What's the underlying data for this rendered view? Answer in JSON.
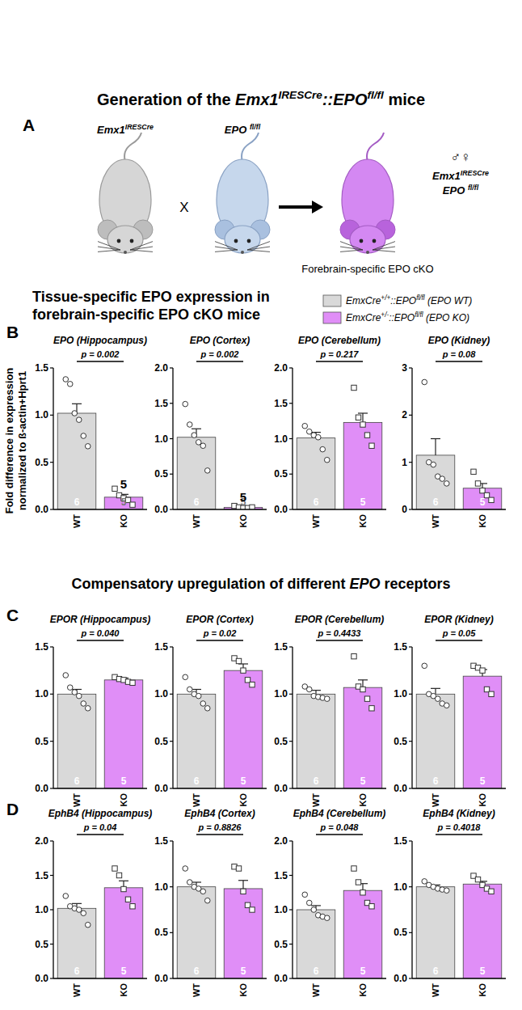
{
  "figure": {
    "title": [
      {
        "text": "Generation of the "
      },
      {
        "text": "Emx1",
        "italic": true
      },
      {
        "text": "IRESCre",
        "italic": true,
        "sup": true
      },
      {
        "text": "::",
        "italic": true
      },
      {
        "text": "EPO",
        "italic": true
      },
      {
        "text": "fl/fl",
        "italic": true,
        "sup": true
      },
      {
        "text": " mice"
      }
    ],
    "panel_letters": [
      "A",
      "B",
      "C",
      "D"
    ],
    "breeding": {
      "parent1": [
        {
          "text": "Emx1",
          "italic": true
        },
        {
          "text": "IRESCre",
          "italic": true,
          "sup": true
        }
      ],
      "cross": "X",
      "parent2": [
        {
          "text": "EPO ",
          "italic": true
        },
        {
          "text": "fl/fl",
          "italic": true,
          "sup": true
        }
      ],
      "sexes": "♂♀",
      "offspring": [
        [
          {
            "text": "Emx1",
            "italic": true
          },
          {
            "text": "IRESCre",
            "italic": true,
            "sup": true
          }
        ],
        [
          {
            "text": "EPO ",
            "italic": true
          },
          {
            "text": "fl/fl",
            "italic": true,
            "sup": true
          }
        ]
      ],
      "offspring_label": "Forebrain-specific EPO cKO"
    },
    "heading_B": [
      "Tissue-specific EPO expression in",
      "forebrain-specific EPO cKO mice"
    ],
    "heading_C": [
      {
        "text": "Compensatory upregulation of different "
      },
      {
        "text": "EPO",
        "italic": true
      },
      {
        "text": " receptors"
      }
    ],
    "legend": [
      {
        "label": [
          {
            "text": "EmxCre"
          },
          {
            "text": "+/+",
            "sup": true
          },
          {
            "text": "::EPO"
          },
          {
            "text": "fl/fl",
            "sup": true
          },
          {
            "text": " (EPO WT)"
          }
        ],
        "color": "#d9d9d9"
      },
      {
        "label": [
          {
            "text": "EmxCre"
          },
          {
            "text": "+/-",
            "sup": true
          },
          {
            "text": "::EPO"
          },
          {
            "text": "fl/fl",
            "sup": true
          },
          {
            "text": " (EPO KO)"
          }
        ],
        "color": "#e08ef7"
      }
    ],
    "y_label": "Fold difference in expression normalized to ß-actin+Hprt1"
  },
  "chart_data": [
    {
      "type": "bar",
      "title": "EPO (Hippocampus)",
      "categories": [
        "WT",
        "KO"
      ],
      "values": [
        1.02,
        0.13
      ],
      "errors": [
        0.1,
        0.03
      ],
      "points": [
        [
          1.38,
          1.33,
          1.02,
          0.95,
          0.78,
          0.67
        ],
        [
          0.22,
          0.15,
          0.12,
          0.1,
          0.05
        ]
      ],
      "n": [
        6,
        5
      ],
      "colors": [
        "#d9d9d9",
        "#e08ef7"
      ],
      "ylim": [
        0,
        1.5
      ],
      "yticks": [
        {
          "value": 0,
          "label": "0.0"
        },
        {
          "value": 0.5,
          "label": "0.5"
        },
        {
          "value": 1,
          "label": "1.0"
        },
        {
          "value": 1.5,
          "label": "1.5"
        }
      ],
      "p_label": "p = 0.002",
      "top_labels": [
        null,
        "5"
      ]
    },
    {
      "type": "bar",
      "title": "EPO (Cortex)",
      "categories": [
        "WT",
        "KO"
      ],
      "values": [
        1.02,
        0.03
      ],
      "errors": [
        0.12,
        0.01
      ],
      "points": [
        [
          1.49,
          1.2,
          1.05,
          0.95,
          0.9,
          0.55
        ],
        [
          0.05,
          0.03,
          0.02,
          0.02,
          0.03
        ]
      ],
      "n": [
        6,
        5
      ],
      "colors": [
        "#d9d9d9",
        "#e08ef7"
      ],
      "ylim": [
        0,
        2
      ],
      "yticks": [
        {
          "value": 0,
          "label": "0.0"
        },
        {
          "value": 0.5,
          "label": "0.5"
        },
        {
          "value": 1,
          "label": "1.0"
        },
        {
          "value": 1.5,
          "label": "1.5"
        },
        {
          "value": 2,
          "label": "2.0"
        }
      ],
      "p_label": "p = 0.002",
      "top_labels": [
        null,
        "5"
      ]
    },
    {
      "type": "bar",
      "title": "EPO (Cerebellum)",
      "categories": [
        "WT",
        "KO"
      ],
      "values": [
        1.01,
        1.23
      ],
      "errors": [
        0.08,
        0.13
      ],
      "points": [
        [
          1.18,
          1.1,
          1.05,
          1.02,
          0.85,
          0.7
        ],
        [
          1.72,
          1.3,
          1.2,
          1.05,
          0.9
        ]
      ],
      "n": [
        6,
        5
      ],
      "colors": [
        "#d9d9d9",
        "#e08ef7"
      ],
      "ylim": [
        0,
        2
      ],
      "yticks": [
        {
          "value": 0,
          "label": "0.0"
        },
        {
          "value": 0.5,
          "label": "0.5"
        },
        {
          "value": 1,
          "label": "1.0"
        },
        {
          "value": 1.5,
          "label": "1.5"
        },
        {
          "value": 2,
          "label": "2.0"
        }
      ],
      "p_label": "p = 0.217"
    },
    {
      "type": "bar",
      "title": "EPO (Kidney)",
      "categories": [
        "WT",
        "KO"
      ],
      "values": [
        1.15,
        0.45
      ],
      "errors": [
        0.35,
        0.1
      ],
      "points": [
        [
          2.7,
          1.0,
          0.95,
          0.7,
          0.65,
          0.55
        ],
        [
          0.8,
          0.55,
          0.4,
          0.3,
          0.2
        ]
      ],
      "n": [
        6,
        5
      ],
      "colors": [
        "#d9d9d9",
        "#e08ef7"
      ],
      "ylim": [
        0,
        3
      ],
      "yticks": [
        0,
        1,
        2,
        3
      ],
      "p_label": "p = 0.08"
    },
    {
      "type": "bar",
      "title": "EPOR (Hippocampus)",
      "categories": [
        "WT",
        "KO"
      ],
      "values": [
        1.0,
        1.15
      ],
      "errors": [
        0.05,
        0.02
      ],
      "points": [
        [
          1.2,
          1.07,
          1.02,
          0.98,
          0.9,
          0.85
        ],
        [
          1.18,
          1.16,
          1.15,
          1.13,
          1.12
        ]
      ],
      "n": [
        6,
        5
      ],
      "colors": [
        "#d9d9d9",
        "#e08ef7"
      ],
      "ylim": [
        0,
        1.5
      ],
      "yticks": [
        {
          "value": 0,
          "label": "0.0"
        },
        {
          "value": 0.5,
          "label": "0.5"
        },
        {
          "value": 1,
          "label": "1.0"
        },
        {
          "value": 1.5,
          "label": "1.5"
        }
      ],
      "p_label": "p = 0.040"
    },
    {
      "type": "bar",
      "title": "EPOR (Cortex)",
      "categories": [
        "WT",
        "KO"
      ],
      "values": [
        1.0,
        1.25
      ],
      "errors": [
        0.05,
        0.07
      ],
      "points": [
        [
          1.18,
          1.05,
          1.0,
          0.98,
          0.9,
          0.85
        ],
        [
          1.38,
          1.35,
          1.25,
          1.15,
          1.1
        ]
      ],
      "n": [
        6,
        5
      ],
      "colors": [
        "#d9d9d9",
        "#e08ef7"
      ],
      "ylim": [
        0,
        1.5
      ],
      "yticks": [
        {
          "value": 0,
          "label": "0.0"
        },
        {
          "value": 0.5,
          "label": "0.5"
        },
        {
          "value": 1,
          "label": "1.0"
        },
        {
          "value": 1.5,
          "label": "1.5"
        }
      ],
      "p_label": "p = 0.02"
    },
    {
      "type": "bar",
      "title": "EPOR (Cerebellum)",
      "categories": [
        "WT",
        "KO"
      ],
      "values": [
        1.0,
        1.07
      ],
      "errors": [
        0.04,
        0.08
      ],
      "points": [
        [
          1.08,
          1.05,
          0.98,
          0.97,
          0.96,
          0.95
        ],
        [
          1.4,
          1.08,
          1.05,
          0.95,
          0.85
        ]
      ],
      "n": [
        6,
        5
      ],
      "colors": [
        "#d9d9d9",
        "#e08ef7"
      ],
      "ylim": [
        0,
        1.5
      ],
      "yticks": [
        {
          "value": 0,
          "label": "0.0"
        },
        {
          "value": 0.5,
          "label": "0.5"
        },
        {
          "value": 1,
          "label": "1.0"
        },
        {
          "value": 1.5,
          "label": "1.5"
        }
      ],
      "p_label": "p = 0.4433"
    },
    {
      "type": "bar",
      "title": "EPOR (Kidney)",
      "categories": [
        "WT",
        "KO"
      ],
      "values": [
        1.0,
        1.19
      ],
      "errors": [
        0.06,
        0.07
      ],
      "points": [
        [
          1.3,
          1.0,
          0.98,
          0.95,
          0.9,
          0.88
        ],
        [
          1.3,
          1.28,
          1.25,
          1.05,
          1.0
        ]
      ],
      "n": [
        6,
        5
      ],
      "colors": [
        "#d9d9d9",
        "#e08ef7"
      ],
      "ylim": [
        0,
        1.5
      ],
      "yticks": [
        {
          "value": 0,
          "label": "0.0"
        },
        {
          "value": 0.5,
          "label": "0.5"
        },
        {
          "value": 1,
          "label": "1.0"
        },
        {
          "value": 1.5,
          "label": "1.5"
        }
      ],
      "p_label": "p = 0.05"
    },
    {
      "type": "bar",
      "title": "EphB4 (Hippocampus)",
      "categories": [
        "WT",
        "KO"
      ],
      "values": [
        1.02,
        1.32
      ],
      "errors": [
        0.07,
        0.1
      ],
      "points": [
        [
          1.2,
          1.05,
          1.02,
          1.0,
          0.95,
          0.78
        ],
        [
          1.6,
          1.5,
          1.3,
          1.15,
          1.05
        ]
      ],
      "n": [
        6,
        5
      ],
      "colors": [
        "#d9d9d9",
        "#e08ef7"
      ],
      "ylim": [
        0,
        2
      ],
      "yticks": [
        {
          "value": 0,
          "label": "0.0"
        },
        {
          "value": 0.5,
          "label": "0.5"
        },
        {
          "value": 1,
          "label": "1.0"
        },
        {
          "value": 1.5,
          "label": "1.5"
        },
        {
          "value": 2,
          "label": "2.0"
        }
      ],
      "p_label": "p = 0.04"
    },
    {
      "type": "bar",
      "title": "EphB4 (Cortex)",
      "categories": [
        "WT",
        "KO"
      ],
      "values": [
        1.0,
        0.98
      ],
      "errors": [
        0.05,
        0.09
      ],
      "points": [
        [
          1.2,
          1.05,
          1.0,
          0.98,
          0.95,
          0.85
        ],
        [
          1.22,
          1.2,
          0.95,
          0.8,
          0.75
        ]
      ],
      "n": [
        6,
        5
      ],
      "colors": [
        "#d9d9d9",
        "#e08ef7"
      ],
      "ylim": [
        0,
        1.5
      ],
      "yticks": [
        {
          "value": 0,
          "label": "0.0"
        },
        {
          "value": 0.5,
          "label": "0.5"
        },
        {
          "value": 1,
          "label": "1.0"
        },
        {
          "value": 1.5,
          "label": "1.5"
        }
      ],
      "p_label": "p = 0.8826"
    },
    {
      "type": "bar",
      "title": "EphB4 (Cerebellum)",
      "categories": [
        "WT",
        "KO"
      ],
      "values": [
        1.0,
        1.28
      ],
      "errors": [
        0.06,
        0.1
      ],
      "points": [
        [
          1.22,
          1.1,
          1.0,
          0.92,
          0.9,
          0.88
        ],
        [
          1.6,
          1.4,
          1.25,
          1.1,
          1.05
        ]
      ],
      "n": [
        6,
        5
      ],
      "colors": [
        "#d9d9d9",
        "#e08ef7"
      ],
      "ylim": [
        0,
        2
      ],
      "yticks": [
        {
          "value": 0,
          "label": "0.0"
        },
        {
          "value": 0.5,
          "label": "0.5"
        },
        {
          "value": 1,
          "label": "1.0"
        },
        {
          "value": 1.5,
          "label": "1.5"
        },
        {
          "value": 2,
          "label": "2.0"
        }
      ],
      "p_label": "p = 0.048"
    },
    {
      "type": "bar",
      "title": "EphB4 (Kidney)",
      "categories": [
        "WT",
        "KO"
      ],
      "values": [
        1.0,
        1.03
      ],
      "errors": [
        0.02,
        0.03
      ],
      "points": [
        [
          1.06,
          1.02,
          1.0,
          0.98,
          0.97,
          0.96
        ],
        [
          1.12,
          1.08,
          1.02,
          0.98,
          0.95
        ]
      ],
      "n": [
        6,
        5
      ],
      "colors": [
        "#d9d9d9",
        "#e08ef7"
      ],
      "ylim": [
        0,
        1.5
      ],
      "yticks": [
        {
          "value": 0,
          "label": "0.0"
        },
        {
          "value": 0.5,
          "label": "0.5"
        },
        {
          "value": 1,
          "label": "1.0"
        },
        {
          "value": 1.5,
          "label": "1.5"
        }
      ],
      "p_label": "p = 0.4018"
    }
  ]
}
